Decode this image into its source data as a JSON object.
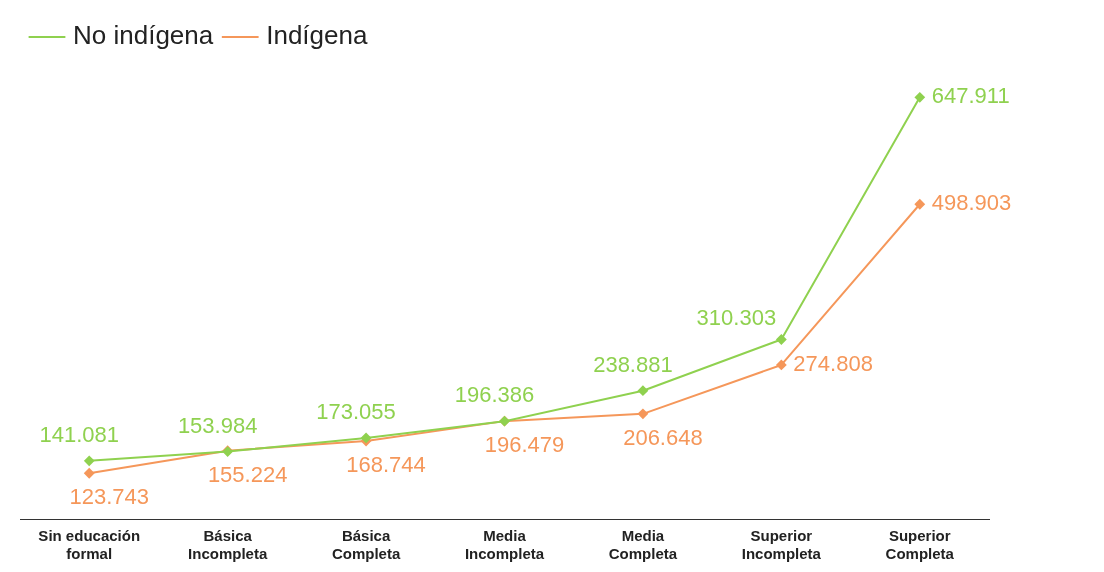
{
  "chart_data": {
    "type": "line",
    "categories": [
      "Sin educación formal",
      "Básica Incompleta",
      "Básica Completa",
      "Media Incompleta",
      "Media Completa",
      "Superior Incompleta",
      "Superior Completa"
    ],
    "series": [
      {
        "name": "No indígena",
        "color": "#8fd14f",
        "values": [
          141081,
          153984,
          173055,
          196386,
          238881,
          310303,
          647911
        ],
        "value_labels": [
          "141.081",
          "153.984",
          "173.055",
          "196.386",
          "238.881",
          "310.303",
          "647.911"
        ]
      },
      {
        "name": "Indígena",
        "color": "#f5975a",
        "values": [
          123743,
          155224,
          168744,
          196479,
          206648,
          274808,
          498903
        ],
        "value_labels": [
          "123.743",
          "155.224",
          "168.744",
          "196.479",
          "206.648",
          "274.808",
          "498.903"
        ]
      }
    ],
    "legend": "top left",
    "grid": false,
    "marker": "diamond",
    "line_style": "solid"
  }
}
